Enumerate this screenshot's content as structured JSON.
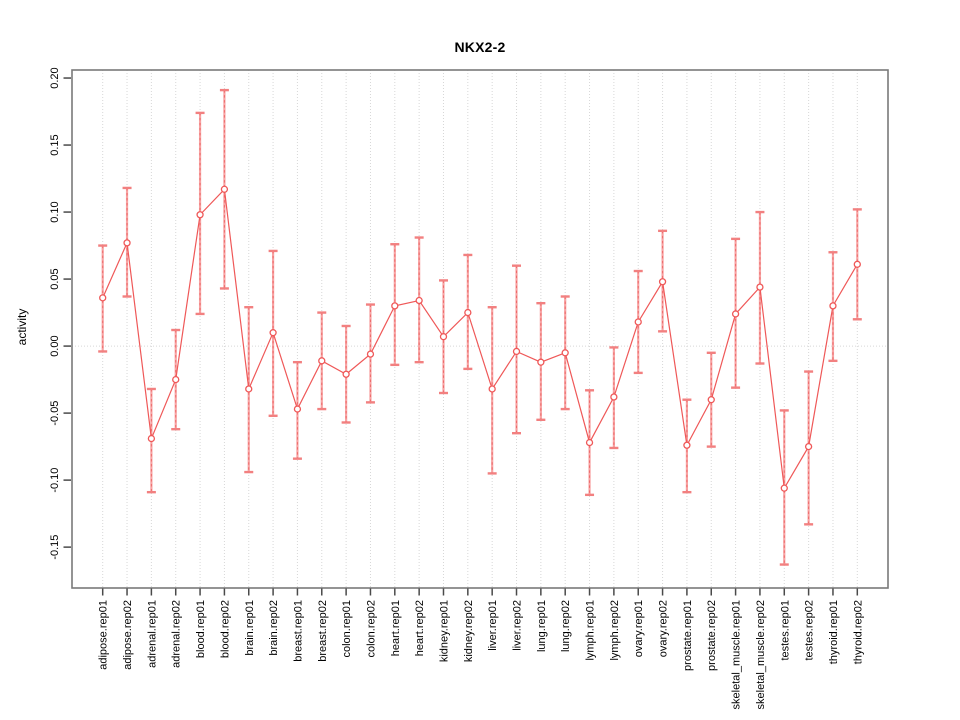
{
  "chart_data": {
    "type": "line",
    "subtype": "points-with-error-bars",
    "title": "NKX2-2",
    "xlabel": "",
    "ylabel": "activity",
    "ylim": [
      -0.1805,
      0.206
    ],
    "grid": "vertical dotted gridline at every category; horizontal dotted line at y=0",
    "legend": "none",
    "yticks": {
      "values": [
        0.2,
        0.15,
        0.1,
        0.05,
        0.0,
        -0.05,
        -0.1,
        -0.15
      ],
      "labels": [
        "0.20",
        "0.15",
        "0.10",
        "0.05",
        "0.00",
        "-0.05",
        "-0.10",
        "-0.15"
      ]
    },
    "categories": [
      "adipose.rep01",
      "adipose.rep02",
      "adrenal.rep01",
      "adrenal.rep02",
      "blood.rep01",
      "blood.rep02",
      "brain.rep01",
      "brain.rep02",
      "breast.rep01",
      "breast.rep02",
      "colon.rep01",
      "colon.rep02",
      "heart.rep01",
      "heart.rep02",
      "kidney.rep01",
      "kidney.rep02",
      "liver.rep01",
      "liver.rep02",
      "lung.rep01",
      "lung.rep02",
      "lymph.rep01",
      "lymph.rep02",
      "ovary.rep01",
      "ovary.rep02",
      "prostate.rep01",
      "prostate.rep02",
      "skeletal_muscle.rep01",
      "skeletal_muscle.rep02",
      "testes.rep01",
      "testes.rep02",
      "thyroid.rep01",
      "thyroid.rep02"
    ],
    "series": [
      {
        "name": "activity",
        "values": [
          0.036,
          0.077,
          -0.069,
          -0.025,
          0.098,
          0.117,
          -0.032,
          0.01,
          -0.047,
          -0.011,
          -0.021,
          -0.006,
          0.03,
          0.034,
          0.007,
          0.025,
          -0.032,
          -0.004,
          -0.012,
          -0.005,
          -0.072,
          -0.038,
          0.018,
          0.048,
          -0.074,
          -0.04,
          0.024,
          0.044,
          -0.106,
          -0.075,
          0.03,
          0.061
        ],
        "lower": [
          -0.004,
          0.037,
          -0.109,
          -0.062,
          0.024,
          0.043,
          -0.094,
          -0.052,
          -0.084,
          -0.047,
          -0.057,
          -0.042,
          -0.014,
          -0.012,
          -0.035,
          -0.017,
          -0.095,
          -0.065,
          -0.055,
          -0.047,
          -0.111,
          -0.076,
          -0.02,
          0.011,
          -0.109,
          -0.075,
          -0.031,
          -0.013,
          -0.163,
          -0.133,
          -0.011,
          0.02
        ],
        "upper": [
          0.075,
          0.118,
          -0.032,
          0.012,
          0.174,
          0.191,
          0.029,
          0.071,
          -0.012,
          0.025,
          0.015,
          0.031,
          0.076,
          0.081,
          0.049,
          0.068,
          0.029,
          0.06,
          0.032,
          0.037,
          -0.033,
          -0.001,
          0.056,
          0.086,
          -0.04,
          -0.005,
          0.08,
          0.1,
          -0.048,
          -0.019,
          0.07,
          0.102
        ]
      }
    ],
    "colors": {
      "line": "#ef5858",
      "point_stroke": "#ef5858",
      "point_fill": "#ffffff",
      "error_stem": "#f7a3a3",
      "error_stem_dash": "#ee6b6b",
      "error_cap": "#f28080",
      "gridline": "#d7d7d7",
      "zero_line": "#d7d7d7",
      "frame": "#7a7a7a",
      "tick": "#4a4a4a",
      "text": "#000000"
    }
  }
}
